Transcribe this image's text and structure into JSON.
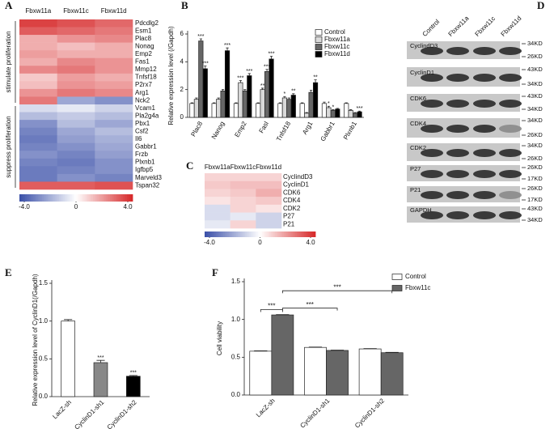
{
  "chart_data": [
    {
      "type": "heatmap",
      "panel": "A",
      "columns": [
        "Fbxw11a",
        "Fbxw11c",
        "Fbxw11d"
      ],
      "rows": [
        "Pdcdlg2",
        "Esm1",
        "Plac8",
        "Nonag",
        "Emp2",
        "Fas1",
        "Mmp12",
        "Tnfsf18",
        "P2rx7",
        "Arg1",
        "Nck2",
        "Vcam1",
        "Pla2g4a",
        "Pbx1",
        "Csf2",
        "Il6",
        "Gabbr1",
        "Frzb",
        "Plxnb1",
        "Igfbp5",
        "Marveld3",
        "Tspan32"
      ],
      "values": [
        [
          3.5,
          3.2,
          2.8
        ],
        [
          3.0,
          2.8,
          2.5
        ],
        [
          1.5,
          2.0,
          2.2
        ],
        [
          1.5,
          1.2,
          1.5
        ],
        [
          1.8,
          1.5,
          1.5
        ],
        [
          1.5,
          2.2,
          2.0
        ],
        [
          2.2,
          2.5,
          2.0
        ],
        [
          1.0,
          1.8,
          1.5
        ],
        [
          1.2,
          2.0,
          1.8
        ],
        [
          2.0,
          2.5,
          2.2
        ],
        [
          2.5,
          -2.0,
          -2.5
        ],
        [
          -0.8,
          -0.5,
          -1.0
        ],
        [
          -1.5,
          -1.2,
          -1.5
        ],
        [
          -2.5,
          -1.5,
          -2.0
        ],
        [
          -2.8,
          -2.0,
          -1.5
        ],
        [
          -3.0,
          -2.2,
          -1.8
        ],
        [
          -2.8,
          -2.5,
          -2.0
        ],
        [
          -2.5,
          -2.8,
          -2.2
        ],
        [
          -2.8,
          -3.0,
          -2.5
        ],
        [
          -3.0,
          -2.8,
          -2.5
        ],
        [
          -3.0,
          -2.5,
          -2.8
        ],
        [
          3.0,
          3.0,
          3.2
        ]
      ],
      "group_labels": [
        "stimulate proliferation",
        "suppress proliferation"
      ],
      "colormap": [
        "#3a4fa8",
        "#ffffff",
        "#d62728"
      ],
      "clim": [
        -4,
        4
      ],
      "cticks": [
        {
          "value": -4,
          "label": "-4.0"
        },
        0,
        {
          "value": 4,
          "label": "4.0"
        }
      ]
    },
    {
      "type": "bar",
      "panel": "B",
      "ylabel": "Relative expression level (/Gapdh)",
      "categories": [
        "Plac8",
        "Nanog",
        "Emp2",
        "Fasl",
        "Tnfsf18",
        "Arg1",
        "Gabbr1",
        "Plxnb1"
      ],
      "series": [
        {
          "name": "Control",
          "color": "#ffffff",
          "values": [
            1,
            1,
            1,
            1,
            1,
            1,
            1,
            1
          ],
          "errors": [
            0.05,
            0.05,
            0.05,
            0.05,
            0.05,
            0.05,
            0.1,
            0.05
          ],
          "significance": [
            null,
            null,
            null,
            null,
            null,
            null,
            null,
            null
          ]
        },
        {
          "name": "Fbxw11a",
          "color": "#d9d9d9",
          "values": [
            1.3,
            1.3,
            2.5,
            2.0,
            1.4,
            0.3,
            0.7,
            0.5
          ],
          "errors": [
            0.1,
            0.1,
            0.15,
            0.1,
            0.1,
            0.05,
            0.1,
            0.05
          ],
          "significance": [
            null,
            null,
            "***",
            "**",
            "*",
            null,
            "*",
            null
          ]
        },
        {
          "name": "Fbxw11c",
          "color": "#666666",
          "values": [
            5.5,
            1.9,
            1.9,
            3.3,
            1.3,
            1.8,
            0.5,
            0.3
          ],
          "errors": [
            0.15,
            0.1,
            0.1,
            0.15,
            0.1,
            0.15,
            0.05,
            0.05
          ],
          "significance": [
            "***",
            null,
            null,
            "***",
            null,
            null,
            "*",
            null
          ]
        },
        {
          "name": "Fbxw11d",
          "color": "#000000",
          "values": [
            3.5,
            4.8,
            3.0,
            4.2,
            1.6,
            2.5,
            0.6,
            0.4
          ],
          "errors": [
            0.2,
            0.2,
            0.15,
            0.2,
            0.1,
            0.2,
            0.05,
            0.05
          ],
          "significance": [
            "***",
            "***",
            "***",
            "***",
            "**",
            "**",
            null,
            "***"
          ]
        }
      ],
      "ylim": [
        0,
        6
      ],
      "yticks": [
        0,
        2,
        4,
        6
      ],
      "legend": "upper right"
    },
    {
      "type": "heatmap",
      "panel": "C",
      "columns": [
        "Fbxw11a",
        "Fbxw11c",
        "Fbxw11d"
      ],
      "rows": [
        "CyclindD3",
        "CyclinD1",
        "CDK6",
        "CDK4",
        "CDK2",
        "P27",
        "P21"
      ],
      "values": [
        [
          0.8,
          0.8,
          0.8
        ],
        [
          1.0,
          1.2,
          1.2
        ],
        [
          0.8,
          1.0,
          1.5
        ],
        [
          0.5,
          0.8,
          1.0
        ],
        [
          -0.8,
          0.8,
          0.5
        ],
        [
          -0.8,
          -0.5,
          -1.0
        ],
        [
          -0.5,
          0.8,
          -1.0
        ]
      ],
      "colormap": [
        "#3a4fa8",
        "#ffffff",
        "#d62728"
      ],
      "clim": [
        -4,
        4
      ],
      "cticks": [
        {
          "value": -4,
          "label": "-4.0"
        },
        0,
        {
          "value": 4,
          "label": "4.0"
        }
      ]
    },
    {
      "type": "bar",
      "panel": "E",
      "ylabel": "Relative expression level of CyclinD1(/Gapdh)",
      "categories": [
        "LacZ-sh",
        "CyclinD1-sh1",
        "CyclinD1-sh2"
      ],
      "values": [
        1.0,
        0.45,
        0.27
      ],
      "errors": [
        0.02,
        0.03,
        0.01
      ],
      "significance": [
        null,
        "***",
        "***"
      ],
      "colors": [
        "#ffffff",
        "#888888",
        "#000000"
      ],
      "ylim": [
        0,
        1.5
      ],
      "yticks": [
        {
          "value": 0,
          "label": "0.0"
        },
        0.5,
        {
          "value": 1,
          "label": "1.0"
        },
        1.5
      ]
    },
    {
      "type": "bar",
      "panel": "F",
      "ylabel": "Cell viability",
      "categories": [
        "LacZ-sh",
        "CyclinD1-sh1",
        "CyclinD1-sh2"
      ],
      "series": [
        {
          "name": "Control",
          "color": "#ffffff",
          "values": [
            0.58,
            0.63,
            0.61
          ],
          "errors": [
            0.005,
            0.005,
            0.005
          ]
        },
        {
          "name": "Fbxw11c",
          "color": "#666666",
          "values": [
            1.06,
            0.59,
            0.56
          ],
          "errors": [
            0.005,
            0.005,
            0.005
          ]
        }
      ],
      "brackets": [
        "***",
        "***",
        "***"
      ],
      "ylim": [
        0,
        1.5
      ],
      "yticks": [
        {
          "value": 0,
          "label": "0.0"
        },
        0.5,
        {
          "value": 1,
          "label": "1.0"
        },
        1.5
      ],
      "legend": "upper right"
    }
  ],
  "blot": {
    "panel": "D",
    "lanes": [
      "Control",
      "Fbxw11a",
      "Fbxw11c",
      "Fbxw11d"
    ],
    "rows": [
      {
        "protein": "CyclindD3",
        "markers": [
          "34KD",
          "26KD"
        ]
      },
      {
        "protein": "CyclinD1",
        "markers": [
          "43KD",
          "34KD"
        ]
      },
      {
        "protein": "CDK6",
        "markers": [
          "43KD",
          "34KD"
        ]
      },
      {
        "protein": "CDK4",
        "markers": [
          "34KD",
          "26KD"
        ]
      },
      {
        "protein": "CDK2",
        "markers": [
          "34KD",
          "26KD"
        ]
      },
      {
        "protein": "P27",
        "markers": [
          "26KD",
          "17KD"
        ]
      },
      {
        "protein": "P21",
        "markers": [
          "26KD",
          "17KD"
        ]
      },
      {
        "protein": "GAPDH",
        "markers": [
          "43KD",
          "34KD"
        ]
      }
    ]
  }
}
